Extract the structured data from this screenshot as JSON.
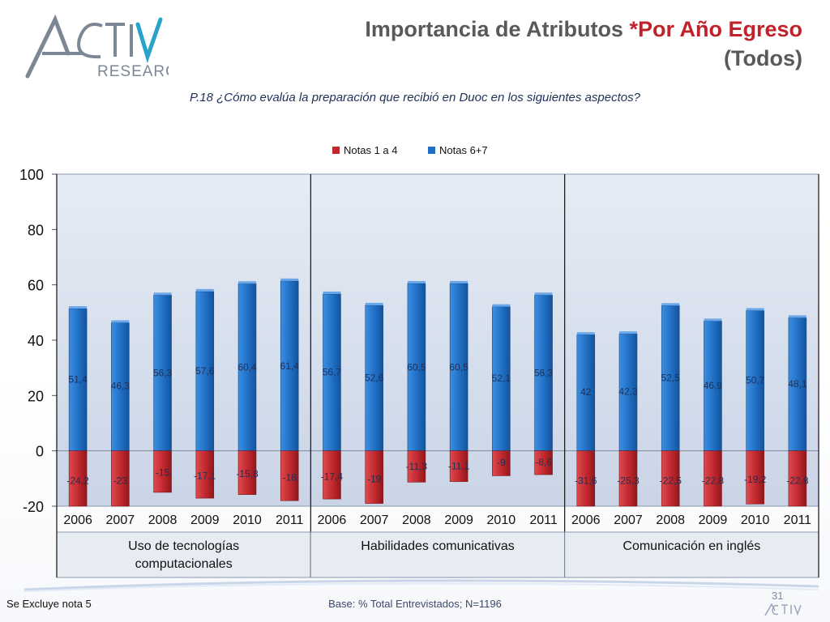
{
  "header": {
    "logo_text": "ACTIVA",
    "logo_subtext": "RESEARCH",
    "title_part1": "Importancia de Atributos ",
    "title_accent": "*Por Año Egreso",
    "title_line2": "(Todos)",
    "question": "P.18 ¿Cómo evalúa la preparación que recibió en Duoc en los siguientes aspectos?"
  },
  "footer": {
    "note": "Se Excluye nota 5",
    "base": "Base: % Total Entrevistados; N=1196",
    "page_number": "31"
  },
  "colors": {
    "red_series": "#c0282d",
    "blue_series": "#1f6fc5",
    "plot_bg": "#d9e1ee",
    "title_gray": "#59595b",
    "title_accent": "#c0222b"
  },
  "chart_data": {
    "type": "bar",
    "legend_position": "top",
    "grid": false,
    "ylim": [
      -20,
      100
    ],
    "yticks": [
      -20,
      0,
      20,
      40,
      60,
      80,
      100
    ],
    "yticks_labels": [
      "-20",
      "0",
      "20",
      "40",
      "60",
      "80",
      "100"
    ],
    "groups": [
      {
        "label": "Uso de tecnologías computacionales",
        "label_lines": [
          "Uso de tecnologías",
          "computacionales"
        ],
        "categories": [
          "2006",
          "2007",
          "2008",
          "2009",
          "2010",
          "2011"
        ],
        "positive": [
          51.4,
          46.3,
          56.3,
          57.6,
          60.4,
          61.4
        ],
        "positive_labels": [
          "51,4",
          "46,3",
          "56,3",
          "57,6",
          "60,4",
          "61,4"
        ],
        "negative": [
          -24.2,
          -23,
          -15,
          -17.1,
          -15.8,
          -18
        ],
        "negative_labels": [
          "-24,2",
          "-23",
          "-15",
          "-17,1",
          "-15,8",
          "-18"
        ]
      },
      {
        "label": "Habilidades comunicativas",
        "label_lines": [
          "Habilidades comunicativas"
        ],
        "categories": [
          "2006",
          "2007",
          "2008",
          "2009",
          "2010",
          "2011"
        ],
        "positive": [
          56.7,
          52.6,
          60.5,
          60.5,
          52.1,
          56.3
        ],
        "positive_labels": [
          "56,7",
          "52,6",
          "60,5",
          "60,5",
          "52,1",
          "56,3"
        ],
        "negative": [
          -17.4,
          -19,
          -11.3,
          -11.1,
          -9,
          -8.6
        ],
        "negative_labels": [
          "-17,4",
          "-19",
          "-11,3",
          "-11,1",
          "-9",
          "-8,6"
        ]
      },
      {
        "label": "Comunicación en inglés",
        "label_lines": [
          "Comunicación en inglés"
        ],
        "categories": [
          "2006",
          "2007",
          "2008",
          "2009",
          "2010",
          "2011"
        ],
        "positive": [
          42,
          42.3,
          52.5,
          46.9,
          50.7,
          48.1
        ],
        "positive_labels": [
          "42",
          "42,3",
          "52,5",
          "46,9",
          "50,7",
          "48,1"
        ],
        "negative": [
          -31.6,
          -25.3,
          -22.5,
          -22.8,
          -19.2,
          -22.8
        ],
        "negative_labels": [
          "-31,6",
          "-25,3",
          "-22,5",
          "-22,8",
          "-19,2",
          "-22,8"
        ]
      }
    ],
    "series": [
      {
        "name": "Notas 1 a 4",
        "color": "#c0282d"
      },
      {
        "name": "Notas 6+7",
        "color": "#1f6fc5"
      }
    ]
  }
}
